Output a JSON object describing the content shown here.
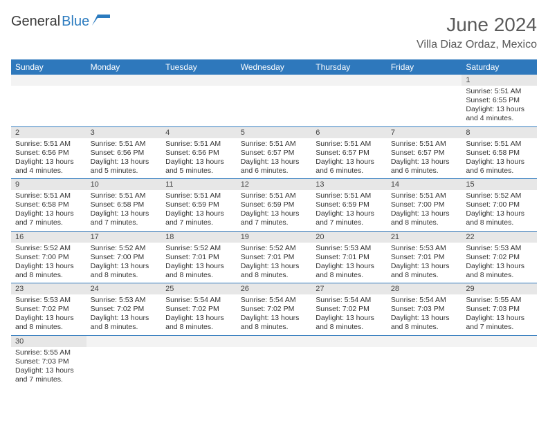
{
  "brand": {
    "general": "General",
    "blue": "Blue"
  },
  "title": "June 2024",
  "location": "Villa Diaz Ordaz, Mexico",
  "colors": {
    "header_bg": "#2e78bc",
    "header_fg": "#ffffff",
    "daynum_bg": "#e7e7e7",
    "row_border": "#2e78bc",
    "logo_blue": "#2b7bbf",
    "title_fg": "#5a5a5a"
  },
  "weekdays": [
    "Sunday",
    "Monday",
    "Tuesday",
    "Wednesday",
    "Thursday",
    "Friday",
    "Saturday"
  ],
  "weeks": [
    [
      null,
      null,
      null,
      null,
      null,
      null,
      {
        "n": "1",
        "sr": "Sunrise: 5:51 AM",
        "ss": "Sunset: 6:55 PM",
        "dl": "Daylight: 13 hours and 4 minutes."
      }
    ],
    [
      {
        "n": "2",
        "sr": "Sunrise: 5:51 AM",
        "ss": "Sunset: 6:56 PM",
        "dl": "Daylight: 13 hours and 4 minutes."
      },
      {
        "n": "3",
        "sr": "Sunrise: 5:51 AM",
        "ss": "Sunset: 6:56 PM",
        "dl": "Daylight: 13 hours and 5 minutes."
      },
      {
        "n": "4",
        "sr": "Sunrise: 5:51 AM",
        "ss": "Sunset: 6:56 PM",
        "dl": "Daylight: 13 hours and 5 minutes."
      },
      {
        "n": "5",
        "sr": "Sunrise: 5:51 AM",
        "ss": "Sunset: 6:57 PM",
        "dl": "Daylight: 13 hours and 6 minutes."
      },
      {
        "n": "6",
        "sr": "Sunrise: 5:51 AM",
        "ss": "Sunset: 6:57 PM",
        "dl": "Daylight: 13 hours and 6 minutes."
      },
      {
        "n": "7",
        "sr": "Sunrise: 5:51 AM",
        "ss": "Sunset: 6:57 PM",
        "dl": "Daylight: 13 hours and 6 minutes."
      },
      {
        "n": "8",
        "sr": "Sunrise: 5:51 AM",
        "ss": "Sunset: 6:58 PM",
        "dl": "Daylight: 13 hours and 6 minutes."
      }
    ],
    [
      {
        "n": "9",
        "sr": "Sunrise: 5:51 AM",
        "ss": "Sunset: 6:58 PM",
        "dl": "Daylight: 13 hours and 7 minutes."
      },
      {
        "n": "10",
        "sr": "Sunrise: 5:51 AM",
        "ss": "Sunset: 6:58 PM",
        "dl": "Daylight: 13 hours and 7 minutes."
      },
      {
        "n": "11",
        "sr": "Sunrise: 5:51 AM",
        "ss": "Sunset: 6:59 PM",
        "dl": "Daylight: 13 hours and 7 minutes."
      },
      {
        "n": "12",
        "sr": "Sunrise: 5:51 AM",
        "ss": "Sunset: 6:59 PM",
        "dl": "Daylight: 13 hours and 7 minutes."
      },
      {
        "n": "13",
        "sr": "Sunrise: 5:51 AM",
        "ss": "Sunset: 6:59 PM",
        "dl": "Daylight: 13 hours and 7 minutes."
      },
      {
        "n": "14",
        "sr": "Sunrise: 5:51 AM",
        "ss": "Sunset: 7:00 PM",
        "dl": "Daylight: 13 hours and 8 minutes."
      },
      {
        "n": "15",
        "sr": "Sunrise: 5:52 AM",
        "ss": "Sunset: 7:00 PM",
        "dl": "Daylight: 13 hours and 8 minutes."
      }
    ],
    [
      {
        "n": "16",
        "sr": "Sunrise: 5:52 AM",
        "ss": "Sunset: 7:00 PM",
        "dl": "Daylight: 13 hours and 8 minutes."
      },
      {
        "n": "17",
        "sr": "Sunrise: 5:52 AM",
        "ss": "Sunset: 7:00 PM",
        "dl": "Daylight: 13 hours and 8 minutes."
      },
      {
        "n": "18",
        "sr": "Sunrise: 5:52 AM",
        "ss": "Sunset: 7:01 PM",
        "dl": "Daylight: 13 hours and 8 minutes."
      },
      {
        "n": "19",
        "sr": "Sunrise: 5:52 AM",
        "ss": "Sunset: 7:01 PM",
        "dl": "Daylight: 13 hours and 8 minutes."
      },
      {
        "n": "20",
        "sr": "Sunrise: 5:53 AM",
        "ss": "Sunset: 7:01 PM",
        "dl": "Daylight: 13 hours and 8 minutes."
      },
      {
        "n": "21",
        "sr": "Sunrise: 5:53 AM",
        "ss": "Sunset: 7:01 PM",
        "dl": "Daylight: 13 hours and 8 minutes."
      },
      {
        "n": "22",
        "sr": "Sunrise: 5:53 AM",
        "ss": "Sunset: 7:02 PM",
        "dl": "Daylight: 13 hours and 8 minutes."
      }
    ],
    [
      {
        "n": "23",
        "sr": "Sunrise: 5:53 AM",
        "ss": "Sunset: 7:02 PM",
        "dl": "Daylight: 13 hours and 8 minutes."
      },
      {
        "n": "24",
        "sr": "Sunrise: 5:53 AM",
        "ss": "Sunset: 7:02 PM",
        "dl": "Daylight: 13 hours and 8 minutes."
      },
      {
        "n": "25",
        "sr": "Sunrise: 5:54 AM",
        "ss": "Sunset: 7:02 PM",
        "dl": "Daylight: 13 hours and 8 minutes."
      },
      {
        "n": "26",
        "sr": "Sunrise: 5:54 AM",
        "ss": "Sunset: 7:02 PM",
        "dl": "Daylight: 13 hours and 8 minutes."
      },
      {
        "n": "27",
        "sr": "Sunrise: 5:54 AM",
        "ss": "Sunset: 7:02 PM",
        "dl": "Daylight: 13 hours and 8 minutes."
      },
      {
        "n": "28",
        "sr": "Sunrise: 5:54 AM",
        "ss": "Sunset: 7:03 PM",
        "dl": "Daylight: 13 hours and 8 minutes."
      },
      {
        "n": "29",
        "sr": "Sunrise: 5:55 AM",
        "ss": "Sunset: 7:03 PM",
        "dl": "Daylight: 13 hours and 7 minutes."
      }
    ],
    [
      {
        "n": "30",
        "sr": "Sunrise: 5:55 AM",
        "ss": "Sunset: 7:03 PM",
        "dl": "Daylight: 13 hours and 7 minutes."
      },
      null,
      null,
      null,
      null,
      null,
      null
    ]
  ]
}
